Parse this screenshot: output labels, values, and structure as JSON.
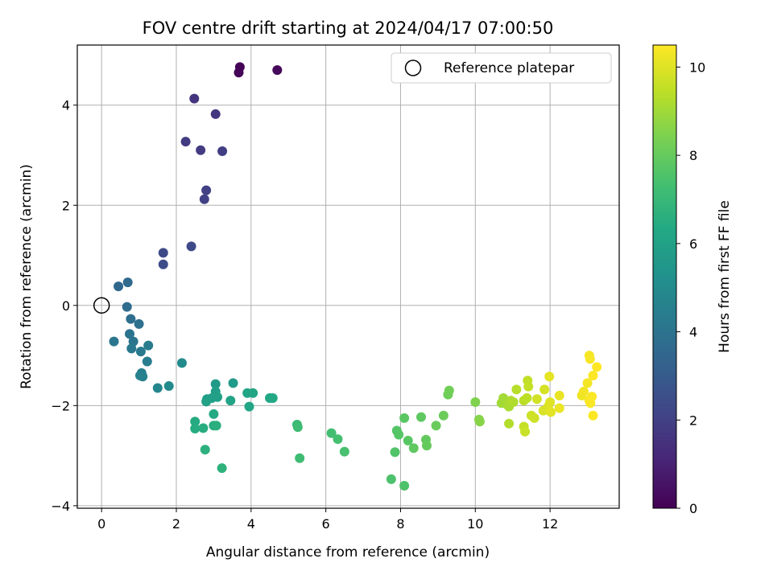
{
  "chart_data": {
    "type": "scatter",
    "title": "FOV centre drift starting at 2024/04/17 07:00:50",
    "xlabel": "Angular distance from reference (arcmin)",
    "ylabel": "Rotation from reference (arcmin)",
    "xlim": [
      -0.65,
      13.85
    ],
    "ylim": [
      -4.05,
      5.2
    ],
    "xticks": [
      0,
      2,
      4,
      6,
      8,
      10,
      12
    ],
    "yticks": [
      -4,
      -2,
      0,
      2,
      4
    ],
    "grid": true,
    "legend": {
      "position": "top-right",
      "entries": [
        "Reference platepar"
      ]
    },
    "reference_point": {
      "x": 0,
      "y": 0
    },
    "colorbar": {
      "label": "Hours from first FF file",
      "range": [
        0,
        10.5
      ],
      "ticks": [
        0,
        2,
        4,
        6,
        8,
        10
      ],
      "colormap": "viridis"
    },
    "points": [
      [
        3.7,
        4.76,
        0.05
      ],
      [
        3.67,
        4.65,
        0.1
      ],
      [
        4.7,
        4.7,
        0.2
      ],
      [
        2.48,
        4.13,
        1.6
      ],
      [
        3.05,
        3.82,
        1.65
      ],
      [
        2.25,
        3.27,
        1.8
      ],
      [
        2.65,
        3.1,
        1.85
      ],
      [
        3.23,
        3.08,
        1.9
      ],
      [
        2.8,
        2.3,
        2.0
      ],
      [
        2.75,
        2.12,
        2.05
      ],
      [
        2.4,
        1.18,
        2.3
      ],
      [
        1.65,
        1.05,
        2.35
      ],
      [
        1.65,
        0.82,
        2.4
      ],
      [
        0.45,
        0.38,
        3.5
      ],
      [
        0.7,
        0.46,
        3.6
      ],
      [
        0.68,
        -0.03,
        3.7
      ],
      [
        0.78,
        -0.27,
        3.8
      ],
      [
        1.0,
        -0.37,
        3.9
      ],
      [
        0.75,
        -0.57,
        4.0
      ],
      [
        0.85,
        -0.72,
        4.05
      ],
      [
        0.33,
        -0.72,
        4.1
      ],
      [
        0.8,
        -0.86,
        4.2
      ],
      [
        1.05,
        -0.92,
        4.3
      ],
      [
        1.25,
        -0.8,
        4.35
      ],
      [
        1.22,
        -1.12,
        4.4
      ],
      [
        1.07,
        -1.35,
        4.5
      ],
      [
        1.1,
        -1.42,
        4.55
      ],
      [
        1.03,
        -1.4,
        4.6
      ],
      [
        1.5,
        -1.65,
        4.8
      ],
      [
        1.8,
        -1.61,
        4.9
      ],
      [
        2.15,
        -1.15,
        5.0
      ],
      [
        3.05,
        -1.57,
        5.6
      ],
      [
        3.52,
        -1.55,
        5.7
      ],
      [
        3.05,
        -1.72,
        5.8
      ],
      [
        2.82,
        -1.87,
        5.85
      ],
      [
        2.95,
        -1.85,
        5.9
      ],
      [
        3.1,
        -1.83,
        5.95
      ],
      [
        2.8,
        -1.92,
        6.0
      ],
      [
        3.45,
        -1.9,
        6.05
      ],
      [
        3.9,
        -1.75,
        6.1
      ],
      [
        4.05,
        -1.75,
        6.15
      ],
      [
        3.95,
        -2.02,
        6.2
      ],
      [
        4.5,
        -1.85,
        6.25
      ],
      [
        4.58,
        -1.85,
        6.3
      ],
      [
        3.0,
        -2.17,
        6.35
      ],
      [
        2.5,
        -2.32,
        6.4
      ],
      [
        2.5,
        -2.46,
        6.45
      ],
      [
        2.72,
        -2.45,
        6.5
      ],
      [
        3.0,
        -2.4,
        6.55
      ],
      [
        3.07,
        -2.4,
        6.6
      ],
      [
        2.77,
        -2.88,
        6.65
      ],
      [
        3.22,
        -3.25,
        6.7
      ],
      [
        5.23,
        -2.38,
        7.1
      ],
      [
        5.25,
        -2.43,
        7.15
      ],
      [
        5.3,
        -3.05,
        7.2
      ],
      [
        6.15,
        -2.55,
        7.3
      ],
      [
        6.32,
        -2.67,
        7.35
      ],
      [
        6.5,
        -2.92,
        7.4
      ],
      [
        7.75,
        -3.47,
        7.5
      ],
      [
        8.1,
        -3.6,
        7.55
      ],
      [
        7.85,
        -2.93,
        7.6
      ],
      [
        7.9,
        -2.5,
        7.65
      ],
      [
        7.95,
        -2.58,
        7.7
      ],
      [
        8.2,
        -2.7,
        7.75
      ],
      [
        8.1,
        -2.25,
        7.8
      ],
      [
        8.55,
        -2.23,
        7.85
      ],
      [
        8.35,
        -2.85,
        7.9
      ],
      [
        8.68,
        -2.68,
        7.95
      ],
      [
        8.7,
        -2.8,
        8.0
      ],
      [
        8.95,
        -2.4,
        8.05
      ],
      [
        9.15,
        -2.2,
        8.1
      ],
      [
        9.27,
        -1.78,
        8.15
      ],
      [
        9.3,
        -1.7,
        8.2
      ],
      [
        10.0,
        -1.93,
        8.5
      ],
      [
        10.1,
        -2.28,
        8.55
      ],
      [
        10.12,
        -2.32,
        8.6
      ],
      [
        10.7,
        -1.95,
        9.0
      ],
      [
        10.75,
        -1.85,
        9.05
      ],
      [
        10.85,
        -1.98,
        9.1
      ],
      [
        10.9,
        -2.02,
        9.15
      ],
      [
        10.95,
        -1.9,
        9.2
      ],
      [
        11.02,
        -1.93,
        9.25
      ],
      [
        10.9,
        -2.36,
        9.3
      ],
      [
        11.1,
        -1.68,
        9.35
      ],
      [
        11.3,
        -1.9,
        9.4
      ],
      [
        11.38,
        -1.85,
        9.45
      ],
      [
        11.4,
        -1.5,
        9.5
      ],
      [
        11.42,
        -1.62,
        9.55
      ],
      [
        11.3,
        -2.42,
        9.6
      ],
      [
        11.33,
        -2.52,
        9.65
      ],
      [
        11.5,
        -2.2,
        9.7
      ],
      [
        11.58,
        -2.25,
        9.75
      ],
      [
        11.65,
        -1.87,
        9.8
      ],
      [
        11.85,
        -1.68,
        9.85
      ],
      [
        11.82,
        -2.1,
        9.9
      ],
      [
        11.95,
        -2.02,
        9.95
      ],
      [
        12.0,
        -1.93,
        10.0
      ],
      [
        12.02,
        -2.13,
        10.05
      ],
      [
        11.98,
        -1.42,
        10.1
      ],
      [
        12.25,
        -1.8,
        10.15
      ],
      [
        12.25,
        -2.05,
        10.2
      ],
      [
        12.85,
        -1.8,
        10.25
      ],
      [
        12.9,
        -1.72,
        10.3
      ],
      [
        13.0,
        -1.55,
        10.35
      ],
      [
        13.05,
        -1.0,
        10.38
      ],
      [
        13.07,
        -1.07,
        10.4
      ],
      [
        13.05,
        -1.9,
        10.42
      ],
      [
        13.08,
        -1.95,
        10.44
      ],
      [
        13.12,
        -1.82,
        10.45
      ],
      [
        13.15,
        -1.4,
        10.47
      ],
      [
        13.15,
        -2.2,
        10.48
      ],
      [
        13.25,
        -1.23,
        10.5
      ]
    ]
  }
}
